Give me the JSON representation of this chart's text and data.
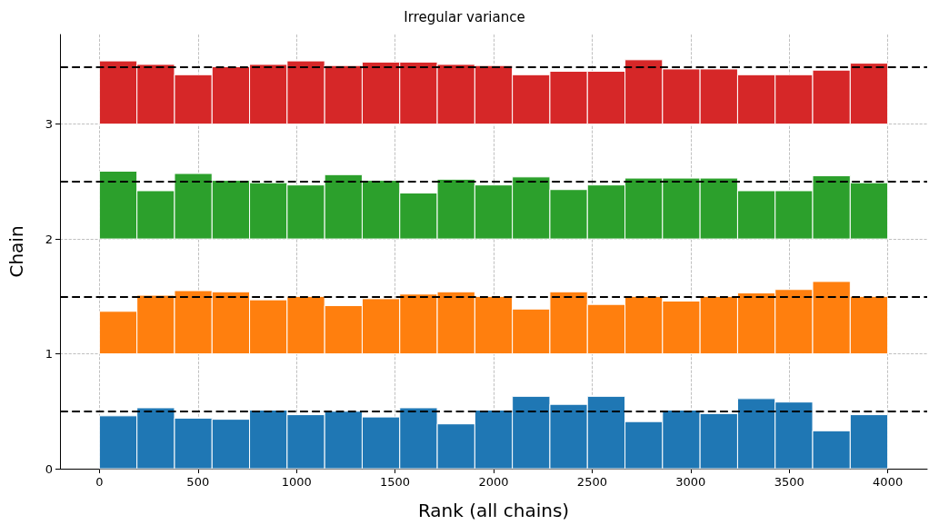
{
  "chart_data": {
    "type": "histogram",
    "title": "Irregular variance",
    "xlabel": "Rank (all chains)",
    "ylabel": "Chain",
    "bins": [
      0,
      190.5,
      381,
      571.4,
      761.9,
      952.4,
      1142.9,
      1333.3,
      1523.8,
      1714.3,
      1904.8,
      2095.2,
      2285.7,
      2476.2,
      2666.7,
      2857.1,
      3047.6,
      3238.1,
      3428.6,
      3619,
      3809.5,
      4000
    ],
    "series": [
      {
        "color": "#1f77b4",
        "base": [
          0,
          0,
          0,
          0,
          0,
          0,
          0,
          0,
          0,
          0,
          0,
          0,
          0,
          0,
          0,
          0,
          0,
          0,
          0,
          0,
          0
        ],
        "values": [
          0.46,
          0.53,
          0.44,
          0.43,
          0.51,
          0.47,
          0.5,
          0.45,
          0.53,
          0.39,
          0.51,
          0.63,
          0.56,
          0.63,
          0.41,
          0.51,
          0.48,
          0.61,
          0.58,
          0.33,
          0.47
        ]
      },
      {
        "color": "#ff7f0e",
        "base": [
          1,
          1,
          1,
          1,
          1,
          1,
          1,
          1,
          1,
          1,
          1,
          1,
          1,
          1,
          1,
          1,
          1,
          1,
          1,
          1,
          1
        ],
        "values": [
          0.37,
          0.51,
          0.55,
          0.54,
          0.47,
          0.5,
          0.42,
          0.48,
          0.52,
          0.54,
          0.5,
          0.39,
          0.54,
          0.43,
          0.5,
          0.46,
          0.5,
          0.53,
          0.56,
          0.63,
          0.5
        ]
      },
      {
        "color": "#2ca02c",
        "base": [
          2,
          2,
          2,
          2,
          2,
          2,
          2,
          2,
          2,
          2,
          2,
          2,
          2,
          2,
          2,
          2,
          2,
          2,
          2,
          2,
          2
        ],
        "values": [
          0.59,
          0.42,
          0.57,
          0.51,
          0.49,
          0.47,
          0.56,
          0.51,
          0.4,
          0.52,
          0.47,
          0.54,
          0.43,
          0.47,
          0.53,
          0.53,
          0.53,
          0.42,
          0.42,
          0.55,
          0.49
        ]
      },
      {
        "color": "#d62728",
        "base": [
          3,
          3,
          3,
          3,
          3,
          3,
          3,
          3,
          3,
          3,
          3,
          3,
          3,
          3,
          3,
          3,
          3,
          3,
          3,
          3,
          3
        ],
        "values": [
          0.55,
          0.52,
          0.43,
          0.5,
          0.52,
          0.55,
          0.51,
          0.54,
          0.54,
          0.52,
          0.51,
          0.43,
          0.46,
          0.46,
          0.56,
          0.48,
          0.48,
          0.43,
          0.43,
          0.47,
          0.53
        ]
      }
    ],
    "xlim": [
      -200,
      4200
    ],
    "xticks": [
      0,
      500,
      1000,
      1500,
      2000,
      2500,
      3000,
      3500,
      4000
    ],
    "ylim": [
      0,
      3.78
    ],
    "yticks": [
      0,
      1,
      2,
      3
    ],
    "grid": true,
    "ref_lines": [
      {
        "axis": "y",
        "value": 0.5,
        "color": "#000000",
        "line_style": "dashed"
      },
      {
        "axis": "y",
        "value": 1.5,
        "color": "#000000",
        "line_style": "dashed"
      },
      {
        "axis": "y",
        "value": 2.5,
        "color": "#000000",
        "line_style": "dashed"
      },
      {
        "axis": "y",
        "value": 3.5,
        "color": "#000000",
        "line_style": "dashed"
      }
    ]
  }
}
